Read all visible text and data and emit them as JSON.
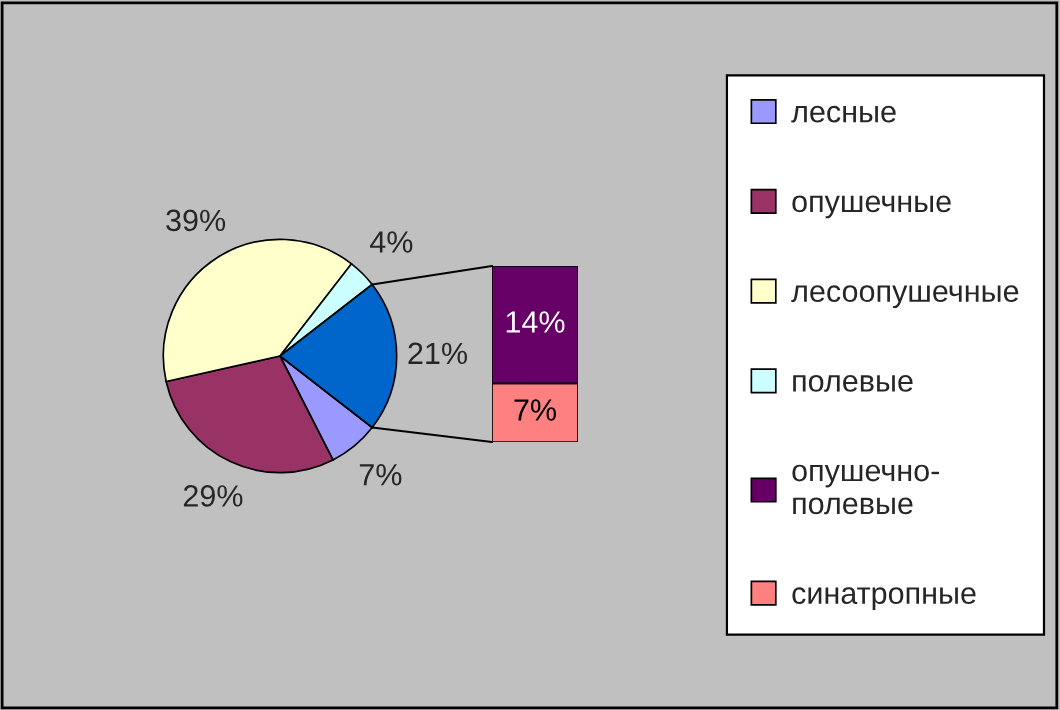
{
  "chart_data": [
    {
      "type": "pie",
      "categories": [
        "лесные",
        "опушечные",
        "лесоопушечные",
        "полевые",
        null
      ],
      "values": [
        7,
        29,
        39,
        4,
        21
      ],
      "colors": [
        "#9999ff",
        "#993366",
        "#ffffcc",
        "#ccffff",
        "#0066cc"
      ],
      "value_labels": [
        "7%",
        "29%",
        "39%",
        "4%",
        "21%"
      ],
      "legend": "right"
    },
    {
      "type": "bar",
      "stacked": true,
      "tick_labels": false,
      "categories": [
        null
      ],
      "series": [
        {
          "name": "синатропные",
          "color": "#ff8080",
          "values": [
            7
          ],
          "value_labels": [
            "7%"
          ]
        },
        {
          "name": "опушечно-\nполевые",
          "color": "#660066",
          "values": [
            14
          ],
          "value_labels": [
            "14%"
          ]
        }
      ],
      "legend": "right"
    }
  ]
}
